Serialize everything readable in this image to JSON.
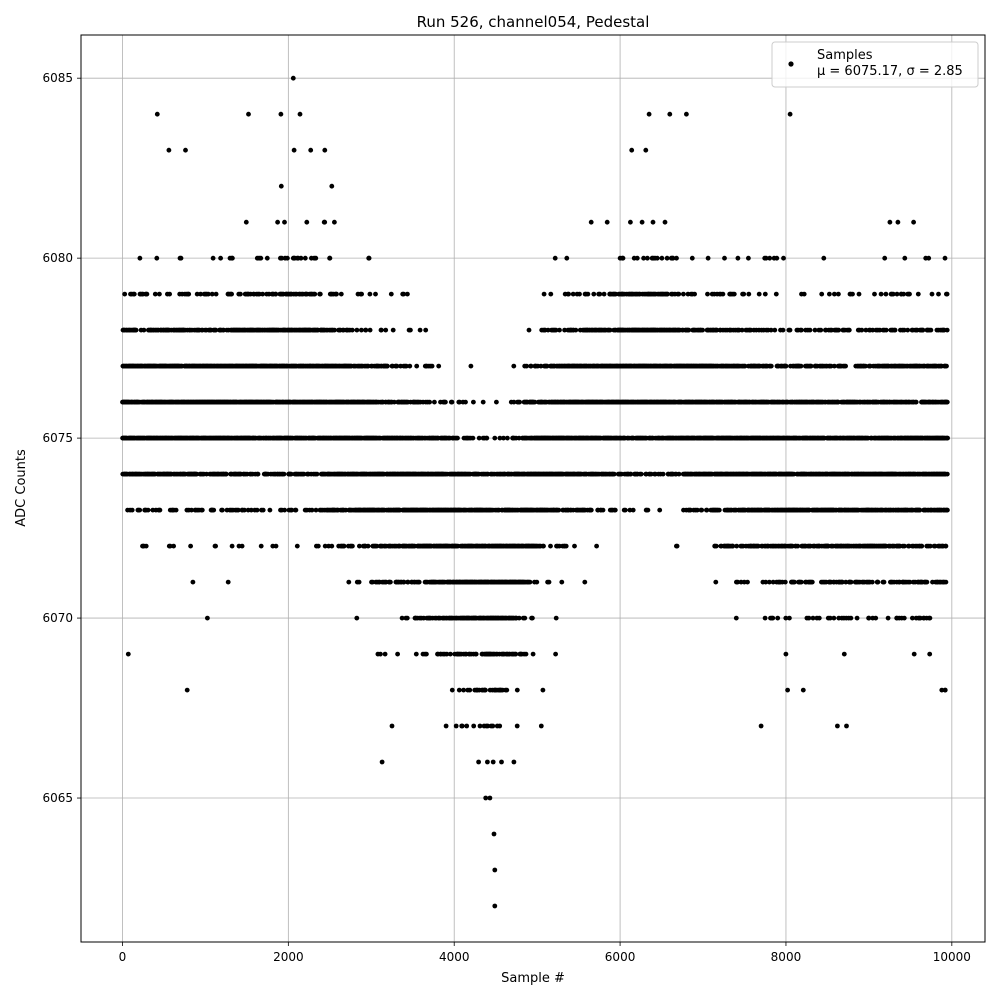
{
  "chart_data": {
    "type": "scatter",
    "title": "Run 526, channel054, Pedestal",
    "xlabel": "Sample #",
    "ylabel": "ADC Counts",
    "xlim": [
      -500,
      10400
    ],
    "ylim": [
      6061,
      6086.2
    ],
    "xticks": [
      0,
      2000,
      4000,
      6000,
      8000,
      10000
    ],
    "yticks": [
      6065,
      6070,
      6075,
      6080,
      6085
    ],
    "grid": true,
    "legend": {
      "placement": "top-right",
      "entries": [
        {
          "label": "Samples",
          "note": "μ = 6075.17, σ = 2.85"
        }
      ]
    },
    "marker_color": "#000000",
    "series": [
      {
        "name": "Samples",
        "profile": {
          "x": [
            0,
            500,
            1000,
            1500,
            2000,
            2500,
            3000,
            3500,
            4000,
            4300,
            4500,
            4700,
            5000,
            5500,
            6000,
            6500,
            7000,
            7500,
            8000,
            8500,
            9000,
            9500,
            9950
          ],
          "y": [
            6075.9,
            6075.8,
            6075.9,
            6076.1,
            6076.6,
            6075.7,
            6074.4,
            6073.4,
            6072.3,
            6071.3,
            6071.1,
            6071.6,
            6074.4,
            6075.6,
            6076.5,
            6076.8,
            6075.9,
            6074.8,
            6074.4,
            6074.1,
            6074.3,
            6074.5,
            6074.6
          ]
        },
        "spread": {
          "x": [
            0,
            1000,
            2000,
            3000,
            4000,
            4500,
            5000,
            6000,
            7000,
            8000,
            9000,
            9950
          ],
          "sd": [
            1.9,
            2.0,
            2.2,
            2.3,
            2.5,
            2.8,
            2.2,
            2.0,
            2.1,
            2.6,
            2.8,
            2.8
          ]
        },
        "count": 10000,
        "outliers": [
          {
            "x": 2060,
            "y": 6085
          },
          {
            "x": 420,
            "y": 6084
          },
          {
            "x": 1520,
            "y": 6084
          },
          {
            "x": 1910,
            "y": 6084
          },
          {
            "x": 2140,
            "y": 6084
          },
          {
            "x": 6350,
            "y": 6084
          },
          {
            "x": 6600,
            "y": 6084
          },
          {
            "x": 6800,
            "y": 6084
          },
          {
            "x": 8050,
            "y": 6084
          },
          {
            "x": 560,
            "y": 6083
          },
          {
            "x": 760,
            "y": 6083
          },
          {
            "x": 2070,
            "y": 6083
          },
          {
            "x": 2270,
            "y": 6083
          },
          {
            "x": 2440,
            "y": 6083
          },
          {
            "x": 6140,
            "y": 6083
          },
          {
            "x": 6310,
            "y": 6083
          },
          {
            "x": 3130,
            "y": 6066
          },
          {
            "x": 4400,
            "y": 6066
          },
          {
            "x": 4470,
            "y": 6066
          },
          {
            "x": 4570,
            "y": 6066
          },
          {
            "x": 4720,
            "y": 6066
          },
          {
            "x": 4380,
            "y": 6065
          },
          {
            "x": 4430,
            "y": 6065
          },
          {
            "x": 4480,
            "y": 6064
          },
          {
            "x": 4490,
            "y": 6063
          },
          {
            "x": 4490,
            "y": 6062
          },
          {
            "x": 3250,
            "y": 6067
          },
          {
            "x": 4150,
            "y": 6067
          },
          {
            "x": 4360,
            "y": 6067
          },
          {
            "x": 5050,
            "y": 6067
          },
          {
            "x": 7700,
            "y": 6067
          },
          {
            "x": 8620,
            "y": 6067
          },
          {
            "x": 8730,
            "y": 6067
          },
          {
            "x": 70,
            "y": 6069
          },
          {
            "x": 780,
            "y": 6068
          },
          {
            "x": 8020,
            "y": 6068
          },
          {
            "x": 9920,
            "y": 6068
          }
        ]
      }
    ]
  }
}
